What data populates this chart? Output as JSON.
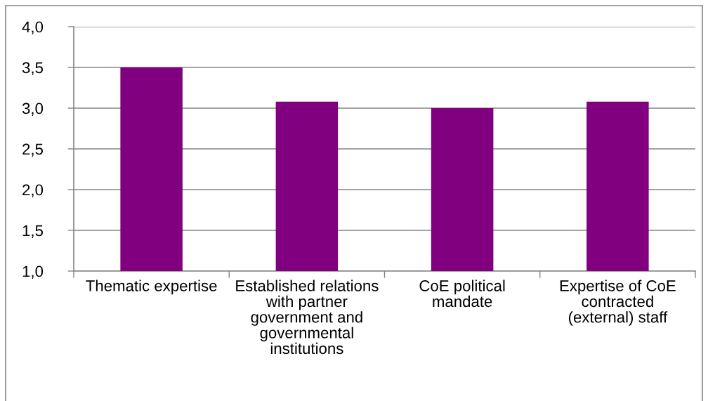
{
  "chart_data": {
    "type": "bar",
    "categories": [
      "Thematic expertise",
      "Established relations\nwith partner\ngovernment and\ngovernmental\ninstitutions",
      "CoE political\nmandate",
      "Expertise of CoE\ncontracted\n(external) staff"
    ],
    "values": [
      3.5,
      3.08,
      3.0,
      3.08
    ],
    "color": "#800080",
    "ylim": [
      1,
      4
    ],
    "yticks": [
      {
        "value": 1,
        "label": "1,0"
      },
      {
        "value": 1.5,
        "label": "1,5"
      },
      {
        "value": 2,
        "label": "2,0"
      },
      {
        "value": 2.5,
        "label": "2,5"
      },
      {
        "value": 3,
        "label": "3,0"
      },
      {
        "value": 3.5,
        "label": "3,5"
      },
      {
        "value": 4,
        "label": "4,0"
      }
    ],
    "grid": "y",
    "legend": false
  }
}
